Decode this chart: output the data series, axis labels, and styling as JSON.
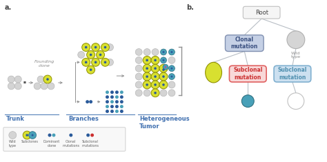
{
  "bg_color": "#ffffff",
  "label_a": "a.",
  "label_b": "b.",
  "trunk_label": "Trunk",
  "branches_label": "Branches",
  "hetero_label": "Heterogeneous\nTumor",
  "founding_clone_label": "Founding\nclone",
  "wild_type_color": "#d4d4d4",
  "subclone_yellow": "#d8e030",
  "subclone_teal": "#48a0b8",
  "clonal_mut_color": "#2a5a9a",
  "subclonal_mut_color": "#cc3030",
  "pink_mut": "#cc4488",
  "root_box_fill": "#f5f5f5",
  "root_box_edge": "#c0c0c0",
  "clonal_box_fill": "#c5d0e5",
  "clonal_box_edge": "#8090b0",
  "subclonal_red_fill": "#f8d8d8",
  "subclonal_red_edge": "#e06060",
  "subclonal_blue_fill": "#cce0f0",
  "subclonal_blue_edge": "#80b0d0",
  "tree_line_color": "#b8bec5",
  "section_line_color": "#5580b8",
  "legend_box_fill": "#f8f8f8",
  "legend_box_edge": "#d5d5d5",
  "text_blue": "#4070b0",
  "text_gray": "#909090",
  "arrow_color": "#909090"
}
